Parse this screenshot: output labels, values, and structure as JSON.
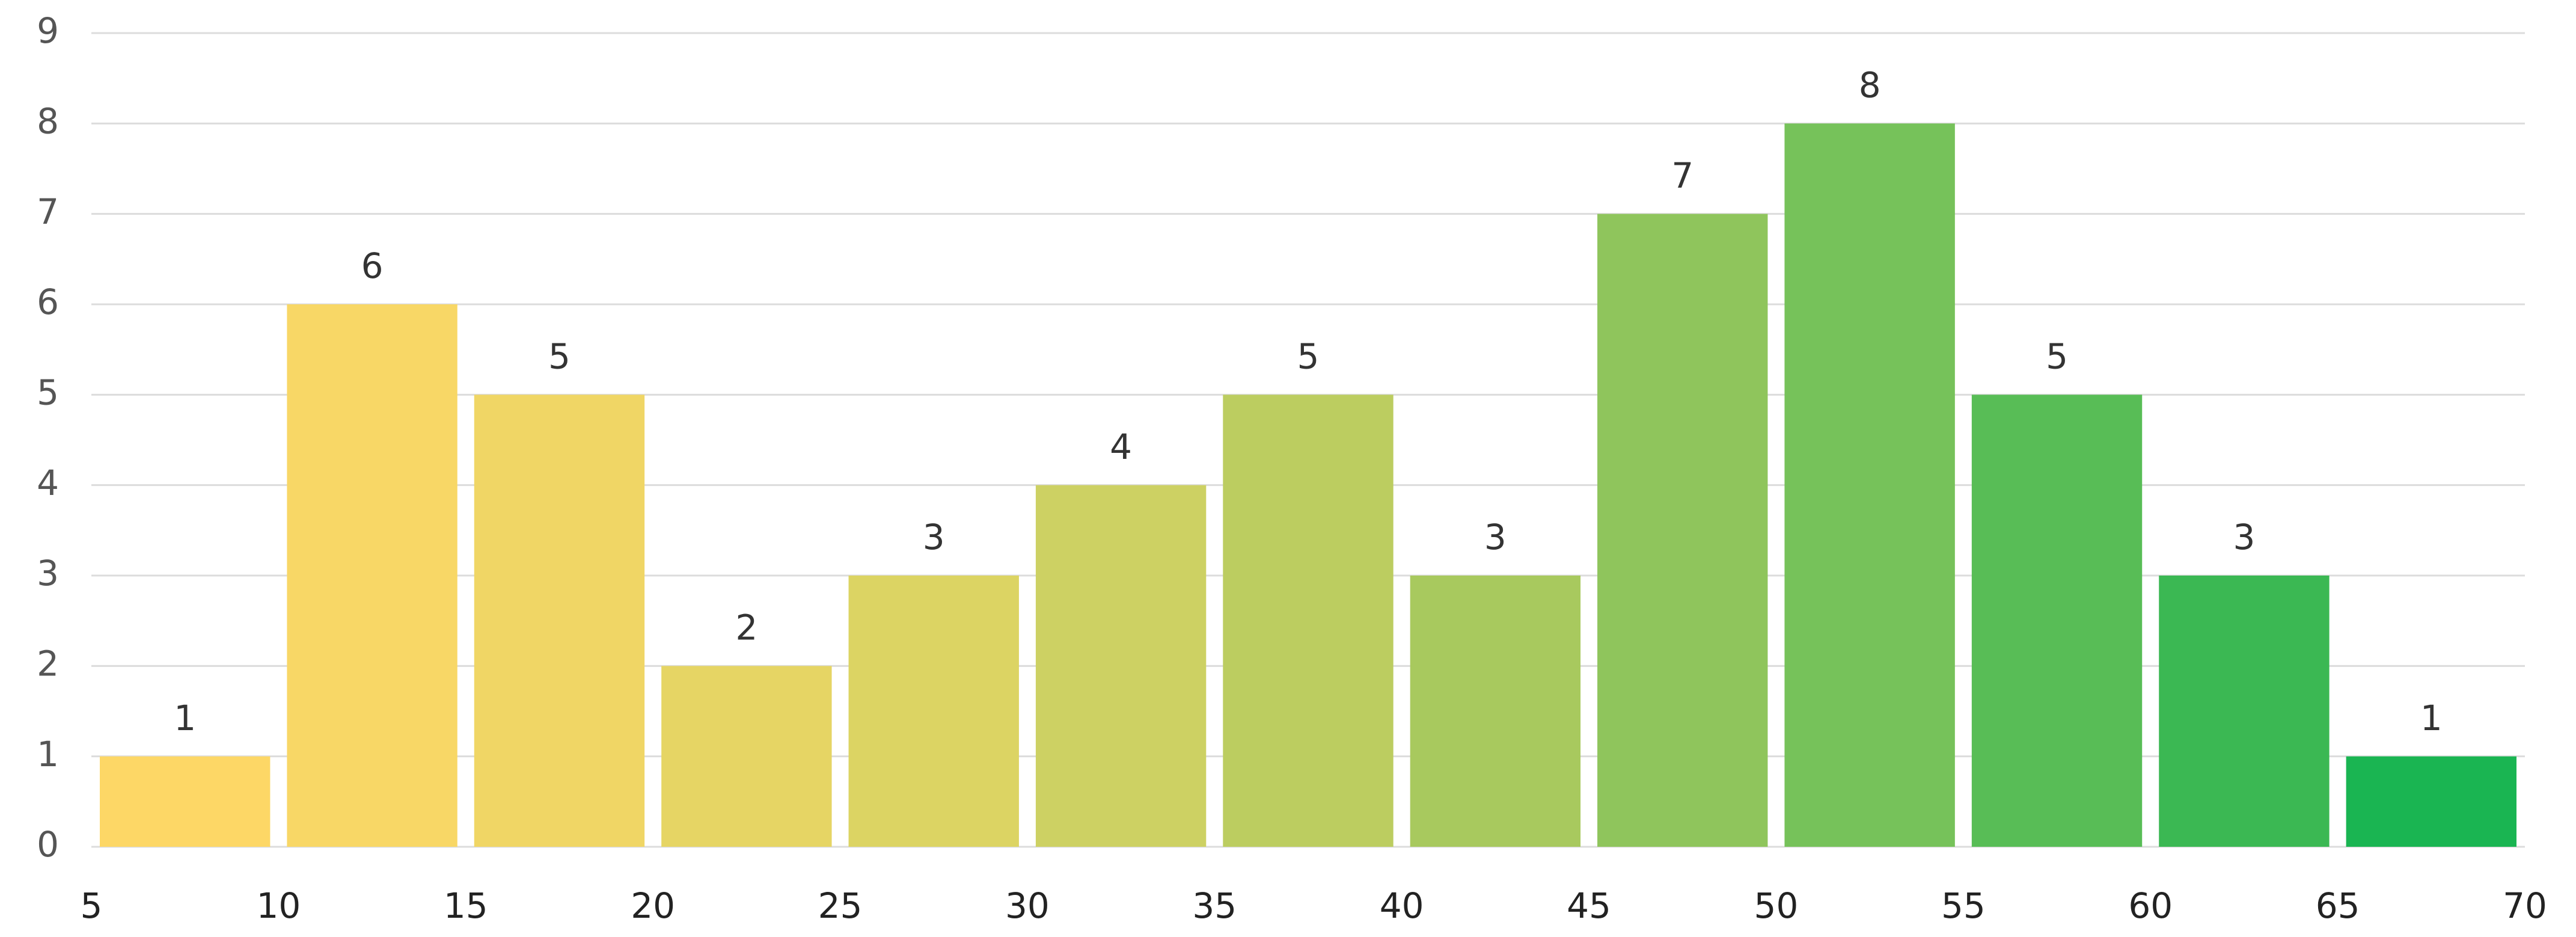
{
  "chart_data": {
    "type": "histogram",
    "bins": [
      5,
      10,
      15,
      20,
      25,
      30,
      35,
      40,
      45,
      50,
      55,
      60,
      65,
      70
    ],
    "values": [
      1,
      6,
      5,
      2,
      3,
      4,
      5,
      3,
      7,
      8,
      5,
      3,
      1
    ],
    "colors": [
      "#fdd766",
      "#f8d766",
      "#f0d665",
      "#e6d564",
      "#dcd463",
      "#cdd163",
      "#bccd60",
      "#a8c95e",
      "#8fc55c",
      "#76c25a",
      "#58bd56",
      "#3bb853",
      "#1ab552"
    ],
    "xlim": [
      5,
      70
    ],
    "xticks": [
      5,
      10,
      15,
      20,
      25,
      30,
      35,
      40,
      45,
      50,
      55,
      60,
      65,
      70
    ],
    "ylim": [
      0,
      9
    ],
    "yticks": [
      0,
      1,
      2,
      3,
      4,
      5,
      6,
      7,
      8,
      9
    ],
    "grid": true,
    "data_labels": true
  }
}
